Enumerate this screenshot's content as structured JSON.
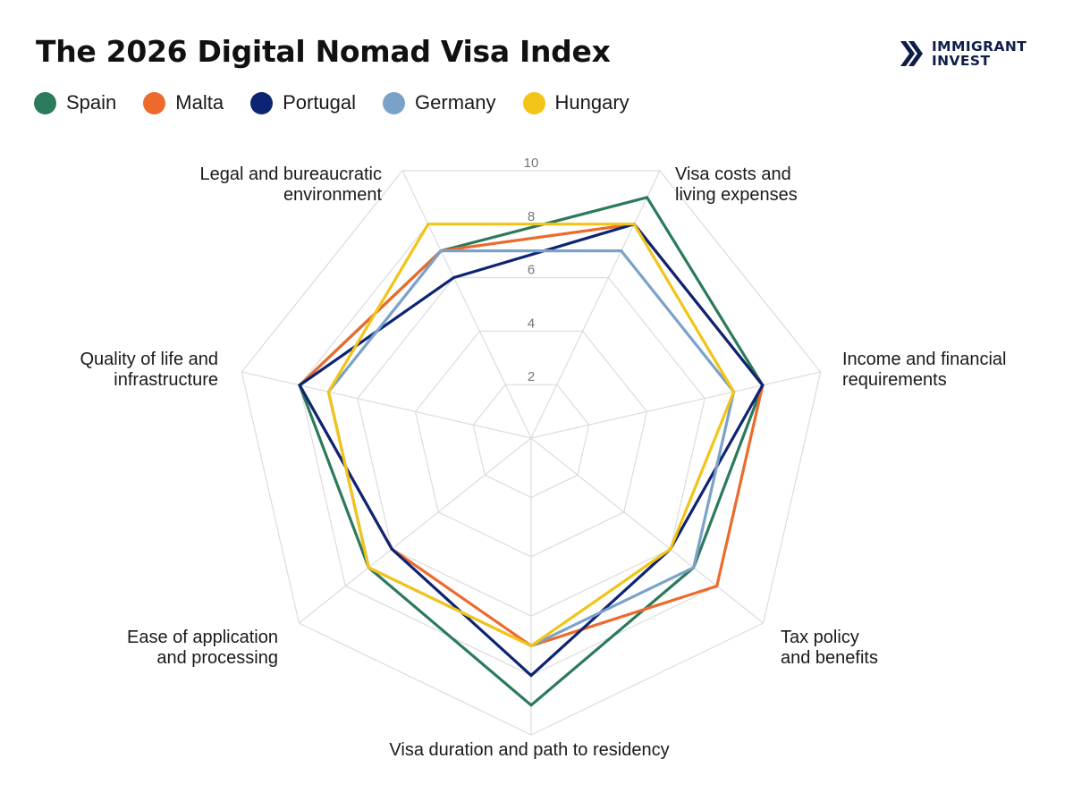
{
  "header": {
    "title": "The 2026 Digital Nomad Visa Index",
    "brand_line1": "IMMIGRANT",
    "brand_line2": "INVEST",
    "brand_color": "#0f1e49"
  },
  "chart_data": {
    "type": "radar",
    "title": "The 2026 Digital Nomad Visa Index",
    "axes": [
      {
        "label": [
          "Visa costs and",
          "living expenses"
        ]
      },
      {
        "label": [
          "Income and financial",
          "requirements"
        ]
      },
      {
        "label": [
          "Tax policy",
          "and benefits"
        ]
      },
      {
        "label": [
          "Visa duration and path to residency"
        ]
      },
      {
        "label": [
          "Ease of application",
          "and processing"
        ]
      },
      {
        "label": [
          "Quality of life and",
          "infrastructure"
        ]
      },
      {
        "label": [
          "Legal and bureaucratic",
          "environment"
        ]
      }
    ],
    "rlim": [
      0,
      10
    ],
    "ticks": [
      2,
      4,
      6,
      8,
      10
    ],
    "tick_labels": [
      "2",
      "4",
      "6",
      "8",
      "10"
    ],
    "grid": true,
    "legend_position": "top-left",
    "series": [
      {
        "name": "Spain",
        "color": "#2b7a5b",
        "values": [
          9,
          8,
          7,
          9,
          7,
          8,
          7
        ]
      },
      {
        "name": "Malta",
        "color": "#ec6a2c",
        "values": [
          8,
          8,
          8,
          7,
          6,
          8,
          7
        ]
      },
      {
        "name": "Portugal",
        "color": "#0c2473",
        "values": [
          8,
          8,
          6,
          8,
          6,
          8,
          6
        ]
      },
      {
        "name": "Germany",
        "color": "#7aa2c9",
        "values": [
          7,
          7,
          7,
          7,
          7,
          7,
          7
        ]
      },
      {
        "name": "Hungary",
        "color": "#f2c417",
        "values": [
          8,
          7,
          6,
          7,
          7,
          7,
          8
        ]
      }
    ]
  }
}
